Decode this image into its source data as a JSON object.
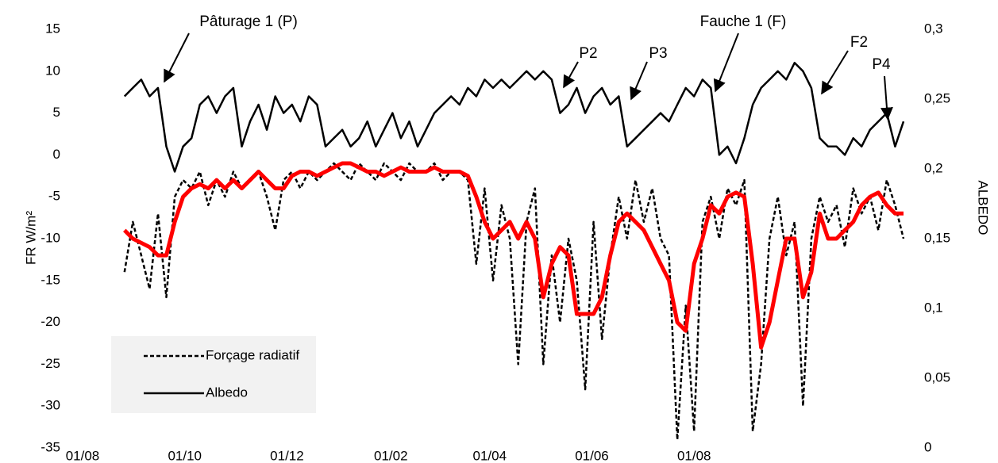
{
  "chart_data": {
    "type": "line",
    "ylabel": "FR W/m²",
    "y2label": "ALBEDO",
    "annotations": [
      "Pâturage 1 (P)",
      "Fauche 1 (F)",
      "P2",
      "P3",
      "F2",
      "P4"
    ],
    "xlim": [
      0,
      490
    ],
    "xticks": [
      {
        "value": 0,
        "label": "01/08"
      },
      {
        "value": 61,
        "label": "01/10"
      },
      {
        "value": 122,
        "label": "01/12"
      },
      {
        "value": 184,
        "label": "01/02"
      },
      {
        "value": 243,
        "label": "01/04"
      },
      {
        "value": 304,
        "label": "01/06"
      },
      {
        "value": 365,
        "label": "01/08"
      }
    ],
    "ylim": [
      -35,
      15
    ],
    "yticks": [
      -35,
      -30,
      -25,
      -20,
      -15,
      -10,
      -5,
      0,
      5,
      10,
      15
    ],
    "y2lim": [
      0,
      0.3
    ],
    "y2ticks": [
      {
        "value": 0,
        "label": "0"
      },
      {
        "value": 0.05,
        "label": "0,05"
      },
      {
        "value": 0.1,
        "label": "0,1"
      },
      {
        "value": 0.15,
        "label": "0,15"
      },
      {
        "value": 0.2,
        "label": "0,2"
      },
      {
        "value": 0.25,
        "label": "0,25"
      },
      {
        "value": 0.3,
        "label": "0,3"
      }
    ],
    "grid": false,
    "x": [
      25,
      30,
      35,
      40,
      45,
      50,
      55,
      60,
      65,
      70,
      75,
      80,
      85,
      90,
      95,
      100,
      105,
      110,
      115,
      120,
      125,
      130,
      135,
      140,
      145,
      150,
      155,
      160,
      165,
      170,
      175,
      180,
      185,
      190,
      195,
      200,
      205,
      210,
      215,
      220,
      225,
      230,
      235,
      240,
      245,
      250,
      255,
      260,
      265,
      270,
      275,
      280,
      285,
      290,
      295,
      300,
      305,
      310,
      315,
      320,
      325,
      330,
      335,
      340,
      345,
      350,
      355,
      360,
      365,
      370,
      375,
      380,
      385,
      390,
      395,
      400,
      405,
      410,
      415,
      420,
      425,
      430,
      435,
      440,
      445,
      450,
      455,
      460,
      465,
      470,
      475,
      480,
      485,
      490
    ],
    "series": [
      {
        "name": "Forçage radiatif",
        "color": "#000000",
        "style": "dashed",
        "values": [
          -14,
          -8,
          -12,
          -16,
          -7,
          -17,
          -5,
          -3,
          -4,
          -2,
          -6,
          -3,
          -5,
          -2,
          -4,
          -3,
          -2,
          -5,
          -9,
          -3,
          -2,
          -4,
          -2,
          -3,
          -2,
          -1,
          -2,
          -3,
          -1,
          -2,
          -3,
          -1,
          -2,
          -3,
          -1,
          -2,
          -2,
          -1,
          -3,
          -2,
          -2,
          -3,
          -13,
          -4,
          -15,
          -6,
          -10,
          -25,
          -8,
          -4,
          -25,
          -12,
          -20,
          -10,
          -15,
          -28,
          -8,
          -22,
          -12,
          -5,
          -10,
          -3,
          -8,
          -4,
          -10,
          -12,
          -34,
          -18,
          -33,
          -8,
          -5,
          -10,
          -4,
          -6,
          -3,
          -33,
          -25,
          -10,
          -5,
          -12,
          -8,
          -30,
          -10,
          -5,
          -8,
          -6,
          -11,
          -4,
          -7,
          -5,
          -9,
          -3,
          -6,
          -10
        ]
      },
      {
        "name": "Albedo",
        "color": "#000000",
        "style": "solid",
        "axis": "y2",
        "values": [
          0.252,
          0.258,
          0.264,
          0.252,
          0.258,
          0.216,
          0.198,
          0.216,
          0.222,
          0.246,
          0.252,
          0.24,
          0.252,
          0.258,
          0.216,
          0.234,
          0.246,
          0.228,
          0.252,
          0.24,
          0.246,
          0.234,
          0.252,
          0.246,
          0.216,
          0.222,
          0.228,
          0.216,
          0.222,
          0.234,
          0.216,
          0.228,
          0.24,
          0.222,
          0.234,
          0.216,
          0.228,
          0.24,
          0.246,
          0.252,
          0.246,
          0.258,
          0.252,
          0.264,
          0.258,
          0.264,
          0.258,
          0.264,
          0.27,
          0.264,
          0.27,
          0.264,
          0.24,
          0.246,
          0.258,
          0.24,
          0.252,
          0.258,
          0.246,
          0.252,
          0.216,
          0.222,
          0.228,
          0.234,
          0.24,
          0.234,
          0.246,
          0.258,
          0.252,
          0.264,
          0.258,
          0.21,
          0.216,
          0.204,
          0.222,
          0.246,
          0.258,
          0.264,
          0.27,
          0.264,
          0.276,
          0.27,
          0.258,
          0.222,
          0.216,
          0.216,
          0.21,
          0.222,
          0.216,
          0.228,
          0.234,
          0.24,
          0.216,
          0.234
        ]
      },
      {
        "color": "#ff0000",
        "style": "thick",
        "values": [
          -9,
          -10,
          -10.5,
          -11,
          -12,
          -12,
          -8,
          -5,
          -4,
          -3.5,
          -4,
          -3,
          -4,
          -3,
          -4,
          -3,
          -2,
          -3,
          -4,
          -4,
          -2.5,
          -2,
          -2,
          -2.5,
          -2,
          -1.5,
          -1,
          -1,
          -1.5,
          -2,
          -2,
          -2.5,
          -2,
          -1.5,
          -2,
          -2,
          -2,
          -1.5,
          -2,
          -2,
          -2,
          -2.5,
          -5,
          -8,
          -10,
          -9,
          -8,
          -10,
          -8,
          -10,
          -17,
          -13,
          -11,
          -12,
          -19,
          -19,
          -19,
          -17,
          -12,
          -8,
          -7,
          -8,
          -9,
          -11,
          -13,
          -15,
          -20,
          -21,
          -13,
          -10,
          -6,
          -7,
          -5,
          -4.5,
          -5,
          -13,
          -23,
          -20,
          -15,
          -10,
          -10,
          -17,
          -14,
          -7,
          -10,
          -10,
          -9,
          -8,
          -6,
          -5,
          -4.5,
          -6,
          -7,
          -7
        ]
      }
    ]
  }
}
